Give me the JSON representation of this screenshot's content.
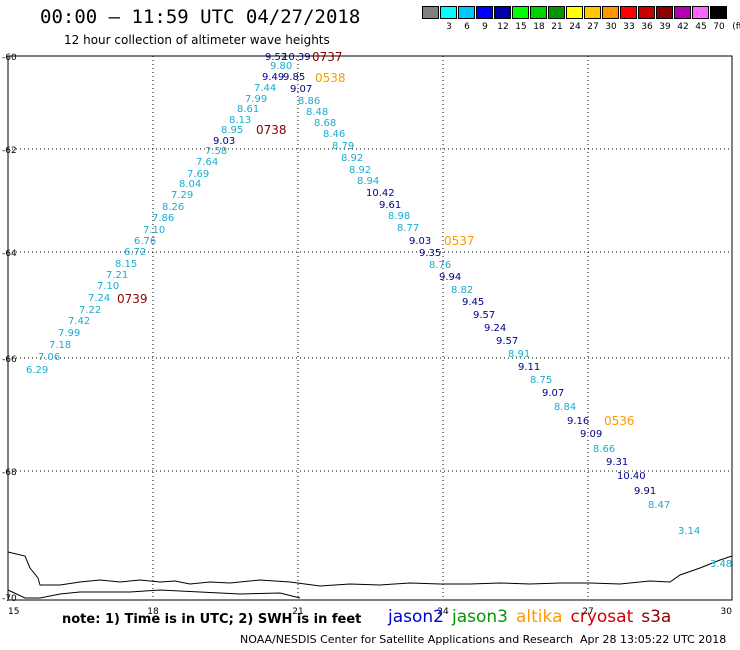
{
  "header": {
    "title": "00:00  —  11:59 UTC 04/27/2018",
    "subtitle": "12 hour collection of altimeter wave heights"
  },
  "legend": {
    "swatches": [
      {
        "label": "",
        "color": "#808080"
      },
      {
        "label": "3",
        "color": "#00ffff"
      },
      {
        "label": "6",
        "color": "#00c8ff"
      },
      {
        "label": "9",
        "color": "#0000ff"
      },
      {
        "label": "12",
        "color": "#0000aa"
      },
      {
        "label": "15",
        "color": "#00ff00"
      },
      {
        "label": "18",
        "color": "#00d200"
      },
      {
        "label": "21",
        "color": "#009600"
      },
      {
        "label": "24",
        "color": "#ffff00"
      },
      {
        "label": "27",
        "color": "#ffc800"
      },
      {
        "label": "30",
        "color": "#ff9600"
      },
      {
        "label": "33",
        "color": "#ff0000"
      },
      {
        "label": "36",
        "color": "#c80000"
      },
      {
        "label": "39",
        "color": "#8b0000"
      },
      {
        "label": "42",
        "color": "#b400b4"
      },
      {
        "label": "45",
        "color": "#ff64ff"
      },
      {
        "label": "70",
        "color": "#000000"
      }
    ],
    "unit": "(ft)"
  },
  "axes": {
    "x_ticks": [
      "15",
      "18",
      "21",
      "24",
      "27",
      "30"
    ],
    "y_ticks": [
      "-60",
      "-62",
      "-64",
      "-66",
      "-68",
      "-70"
    ]
  },
  "track": {
    "colors": {
      "cyan": "#1aaccc",
      "navy": "#00008b",
      "orange": "#ff9900",
      "maroon": "#8b0000"
    },
    "points": [
      {
        "v": "9.52",
        "c": "navy"
      },
      {
        "v": "10.39",
        "c": "navy"
      },
      {
        "v": "9.80",
        "c": "cyan"
      },
      {
        "v": "9.49",
        "c": "navy"
      },
      {
        "v": "9.85",
        "c": "navy"
      },
      {
        "v": "7.44",
        "c": "cyan"
      },
      {
        "v": "9.07",
        "c": "navy"
      },
      {
        "v": "7.99",
        "c": "cyan"
      },
      {
        "v": "8.86",
        "c": "cyan"
      },
      {
        "v": "8.61",
        "c": "cyan"
      },
      {
        "v": "8.48",
        "c": "cyan"
      },
      {
        "v": "8.13",
        "c": "cyan"
      },
      {
        "v": "8.68",
        "c": "cyan"
      },
      {
        "v": "8.95",
        "c": "cyan"
      },
      {
        "v": "8.46",
        "c": "cyan"
      },
      {
        "v": "9.03",
        "c": "navy"
      },
      {
        "v": "8.79",
        "c": "cyan"
      },
      {
        "v": "7.58",
        "c": "cyan"
      },
      {
        "v": "8.92",
        "c": "cyan"
      },
      {
        "v": "7.64",
        "c": "cyan"
      },
      {
        "v": "8.92",
        "c": "cyan"
      },
      {
        "v": "7.69",
        "c": "cyan"
      },
      {
        "v": "8.94",
        "c": "cyan"
      },
      {
        "v": "8.04",
        "c": "cyan"
      },
      {
        "v": "10.42",
        "c": "navy"
      },
      {
        "v": "7.29",
        "c": "cyan"
      },
      {
        "v": "9.61",
        "c": "navy"
      },
      {
        "v": "8.26",
        "c": "cyan"
      },
      {
        "v": "8.98",
        "c": "cyan"
      },
      {
        "v": "7.86",
        "c": "cyan"
      },
      {
        "v": "8.77",
        "c": "cyan"
      },
      {
        "v": "7.10",
        "c": "cyan"
      },
      {
        "v": "9.03",
        "c": "navy"
      },
      {
        "v": "6.76",
        "c": "cyan"
      },
      {
        "v": "9.35",
        "c": "navy"
      },
      {
        "v": "6.72",
        "c": "cyan"
      },
      {
        "v": "8.76",
        "c": "cyan"
      },
      {
        "v": "8.15",
        "c": "cyan"
      },
      {
        "v": "9.94",
        "c": "navy"
      },
      {
        "v": "7.21",
        "c": "cyan"
      },
      {
        "v": "8.82",
        "c": "cyan"
      },
      {
        "v": "7.10",
        "c": "cyan"
      },
      {
        "v": "9.45",
        "c": "navy"
      },
      {
        "v": "7.24",
        "c": "cyan"
      },
      {
        "v": "9.57",
        "c": "navy"
      },
      {
        "v": "7.22",
        "c": "cyan"
      },
      {
        "v": "9.24",
        "c": "navy"
      },
      {
        "v": "7.42",
        "c": "cyan"
      },
      {
        "v": "9.57",
        "c": "navy"
      },
      {
        "v": "7.99",
        "c": "cyan"
      },
      {
        "v": "8.91",
        "c": "cyan"
      },
      {
        "v": "7.18",
        "c": "cyan"
      },
      {
        "v": "9.11",
        "c": "navy"
      },
      {
        "v": "7.06",
        "c": "cyan"
      },
      {
        "v": "8.75",
        "c": "cyan"
      },
      {
        "v": "6.29",
        "c": "cyan"
      },
      {
        "v": "9.07",
        "c": "navy"
      },
      {
        "v": "8.84",
        "c": "cyan"
      },
      {
        "v": "9.16",
        "c": "navy"
      },
      {
        "v": "9.09",
        "c": "navy"
      },
      {
        "v": "8.66",
        "c": "cyan"
      },
      {
        "v": "9.31",
        "c": "navy"
      },
      {
        "v": "10.40",
        "c": "navy"
      },
      {
        "v": "9.91",
        "c": "navy"
      },
      {
        "v": "8.47",
        "c": "cyan"
      },
      {
        "v": "3.14",
        "c": "cyan"
      },
      {
        "v": "3.48",
        "c": "cyan"
      }
    ],
    "time_labels": [
      {
        "v": "0737",
        "c": "maroon"
      },
      {
        "v": "0538",
        "c": "orange"
      },
      {
        "v": "0738",
        "c": "maroon"
      },
      {
        "v": "0537",
        "c": "orange"
      },
      {
        "v": "0739",
        "c": "maroon"
      },
      {
        "v": "0536",
        "c": "orange"
      }
    ]
  },
  "footer": {
    "note": "note:  1) Time is in UTC;  2) SWH is in feet",
    "satellites": [
      {
        "name": "jason2",
        "color": "#0000cc"
      },
      {
        "name": "jason3",
        "color": "#009900"
      },
      {
        "name": "altika",
        "color": "#ff9900"
      },
      {
        "name": "cryosat",
        "color": "#cc0000"
      },
      {
        "name": "s3a",
        "color": "#8b0000"
      }
    ],
    "credit": "NOAA/NESDIS Center for Satellite Applications and Research",
    "timestamp": "Apr 28 13:05:22 UTC 2018"
  }
}
